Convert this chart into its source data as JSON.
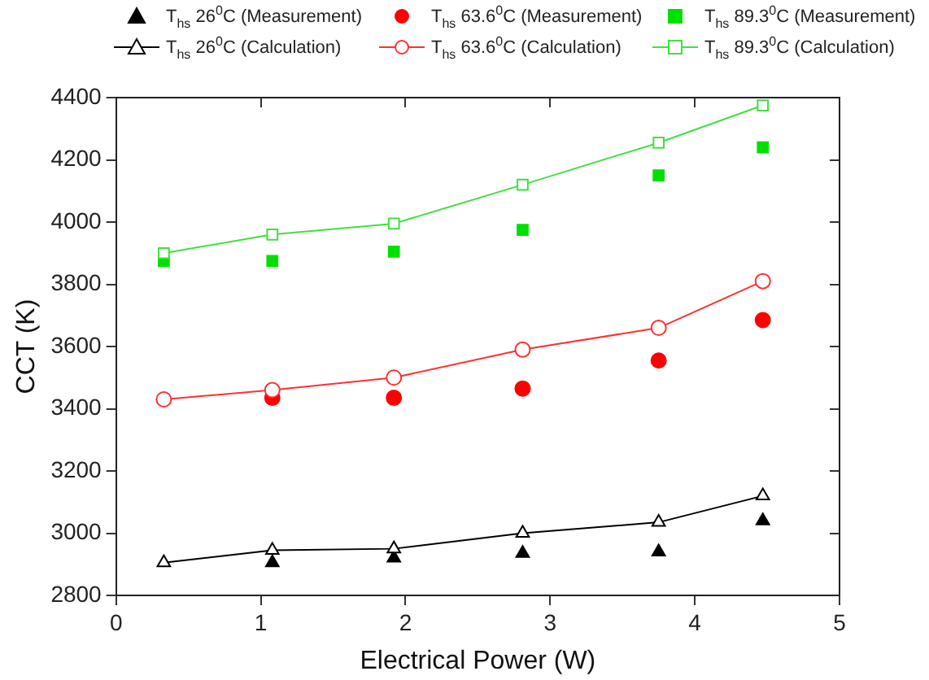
{
  "chart_data": {
    "type": "line",
    "xlabel": "Electrical Power (W)",
    "ylabel": "CCT (K)",
    "x": [
      0.33,
      1.08,
      1.92,
      2.81,
      3.75,
      4.47
    ],
    "xlim": [
      0,
      5
    ],
    "xticks": [
      0,
      1,
      2,
      3,
      4,
      5
    ],
    "ylim": [
      2800,
      4400
    ],
    "yticks": [
      2800,
      3000,
      3200,
      3400,
      3600,
      3800,
      4000,
      4200,
      4400
    ],
    "grid": false,
    "legend": "top",
    "series": [
      {
        "name": "T$_{hs}$ 26$^{0}$C (Measurement)",
        "type": "scatter",
        "marker": "triangle",
        "color": "#000000",
        "values": [
          null,
          2905,
          2920,
          2935,
          2940,
          3040
        ]
      },
      {
        "name": "T$_{hs}$ 63.6$^{0}$C (Measurement)",
        "type": "scatter",
        "marker": "circle",
        "color": "#ff0000",
        "values": [
          null,
          3435,
          3435,
          3465,
          3555,
          3685
        ]
      },
      {
        "name": "T$_{hs}$ 89.3$^{0}$C (Measurement)",
        "type": "scatter",
        "marker": "square",
        "color": "#00e000",
        "values": [
          3875,
          3875,
          3905,
          3975,
          4150,
          4240
        ]
      },
      {
        "name": "T$_{hs}$ 26$^{0}$C (Calculation)",
        "marker": "triangle",
        "color": "#000000",
        "values": [
          2905,
          2945,
          2950,
          3000,
          3035,
          3120
        ]
      },
      {
        "name": "T$_{hs}$ 63.6$^{0}$C (Calculation)",
        "marker": "circle",
        "color": "#ff3030",
        "values": [
          3430,
          3460,
          3500,
          3590,
          3660,
          3810
        ]
      },
      {
        "name": "T$_{hs}$ 89.3$^{0}$C (Calculation)",
        "marker": "square",
        "color": "#40e040",
        "values": [
          3900,
          3960,
          3995,
          4120,
          4255,
          4375
        ]
      }
    ]
  }
}
